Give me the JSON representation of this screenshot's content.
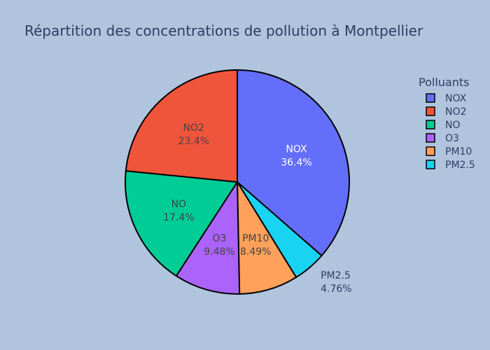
{
  "chart_data": {
    "type": "pie",
    "title": "Répartition des concentrations de pollution à Montpellier",
    "legend_title": "Polluants",
    "legend_position": "right",
    "slices": [
      {
        "label": "NOX",
        "percent": 36.4,
        "percent_text": "36.4%",
        "color": "#636efa",
        "text_color": "#ffffff",
        "label_position": "inside"
      },
      {
        "label": "PM2.5",
        "percent": 4.76,
        "percent_text": "4.76%",
        "color": "#19d3f3",
        "text_color": "#2a3f5f",
        "label_position": "outside"
      },
      {
        "label": "PM10",
        "percent": 8.49,
        "percent_text": "8.49%",
        "color": "#ffa15a",
        "text_color": "#444444",
        "label_position": "inside"
      },
      {
        "label": "O3",
        "percent": 9.48,
        "percent_text": "9.48%",
        "color": "#ab63fa",
        "text_color": "#444444",
        "label_position": "inside"
      },
      {
        "label": "NO",
        "percent": 17.4,
        "percent_text": "17.4%",
        "color": "#00cc96",
        "text_color": "#444444",
        "label_position": "inside"
      },
      {
        "label": "NO2",
        "percent": 23.4,
        "percent_text": "23.4%",
        "color": "#ef553b",
        "text_color": "#444444",
        "label_position": "inside"
      }
    ],
    "legend": [
      {
        "label": "NOX",
        "color": "#636efa"
      },
      {
        "label": "NO2",
        "color": "#ef553b"
      },
      {
        "label": "NO",
        "color": "#00cc96"
      },
      {
        "label": "O3",
        "color": "#ab63fa"
      },
      {
        "label": "PM10",
        "color": "#ffa15a"
      },
      {
        "label": "PM2.5",
        "color": "#19d3f3"
      }
    ]
  }
}
